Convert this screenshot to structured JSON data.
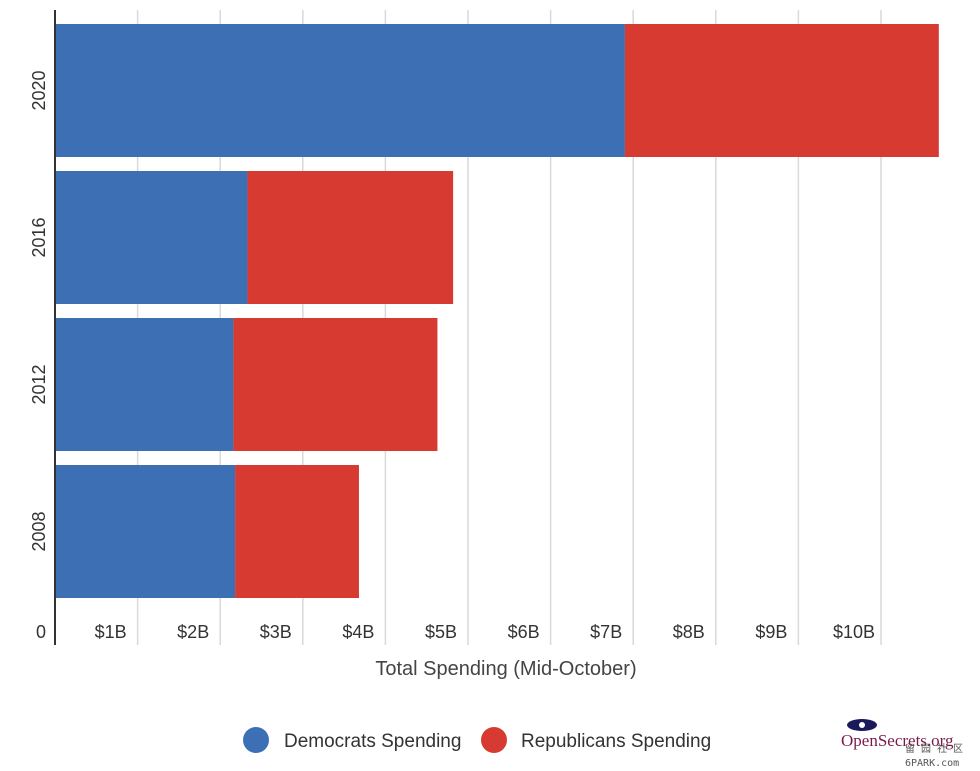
{
  "chart_data": {
    "type": "bar",
    "orientation": "horizontal",
    "stacked": true,
    "categories": [
      "2020",
      "2016",
      "2012",
      "2008"
    ],
    "series": [
      {
        "name": "Democrats Spending",
        "color": "#3d6fb4",
        "values": [
          6.9,
          2.33,
          2.16,
          2.18
        ]
      },
      {
        "name": "Republicans Spending",
        "color": "#d63a31",
        "values": [
          3.8,
          2.49,
          2.47,
          1.5
        ]
      }
    ],
    "xlabel": "Total Spending (Mid-October)",
    "ylabel": "",
    "xlim": [
      0,
      10.8
    ],
    "ticks": [
      {
        "value": 0,
        "label": "0"
      },
      {
        "value": 1,
        "label": "$1B"
      },
      {
        "value": 2,
        "label": "$2B"
      },
      {
        "value": 3,
        "label": "$3B"
      },
      {
        "value": 4,
        "label": "$4B"
      },
      {
        "value": 5,
        "label": "$5B"
      },
      {
        "value": 6,
        "label": "$6B"
      },
      {
        "value": 7,
        "label": "$7B"
      },
      {
        "value": 8,
        "label": "$8B"
      },
      {
        "value": 9,
        "label": "$9B"
      },
      {
        "value": 10,
        "label": "$10B"
      }
    ],
    "grid": true,
    "legend_position": "bottom"
  },
  "brand": {
    "text": "OpenSecrets.org",
    "color": "#7a1a4a"
  },
  "watermark": {
    "line1": "留 园 社 区",
    "line2": "6PARK.com"
  }
}
